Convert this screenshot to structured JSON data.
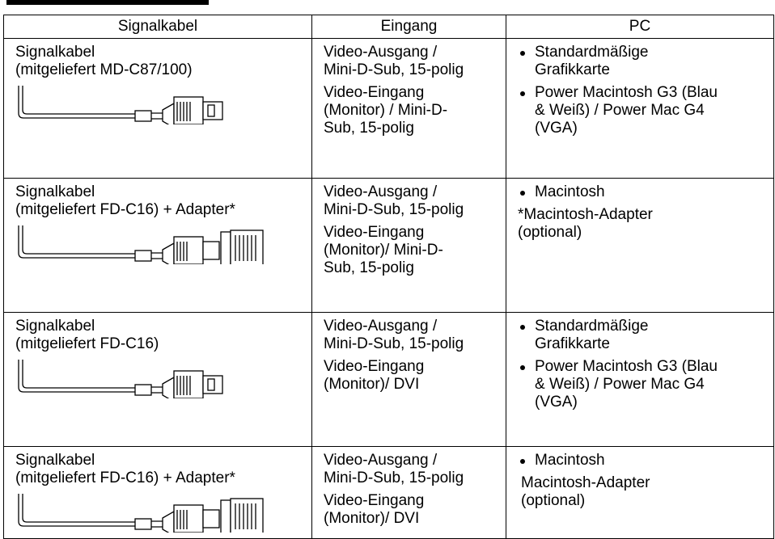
{
  "table": {
    "header": [
      "Signalkabel",
      "Eingang",
      "PC"
    ],
    "rows": [
      {
        "cable": [
          "Signalkabel",
          "(mitgeliefert MD-C87/100)"
        ],
        "input": [
          [
            "Video-Ausgang /",
            "Mini-D-Sub, 15-polig"
          ],
          [
            "Video-Eingang",
            "(Monitor) /  Mini-D-",
            "Sub, 15-polig"
          ]
        ],
        "pc": {
          "items": [
            [
              "Standardmäßige",
              "Grafikkarte"
            ],
            [
              "Power Macintosh G3 (Blau",
              "& Weiß) / Power Mac G4",
              "(VGA)"
            ]
          ],
          "note": []
        }
      },
      {
        "cable": [
          "Signalkabel",
          "(mitgeliefert FD-C16) + Adapter*"
        ],
        "input": [
          [
            "Video-Ausgang /",
            "Mini-D-Sub, 15-polig"
          ],
          [
            "Video-Eingang",
            "(Monitor)/  Mini-D-",
            "Sub, 15-polig"
          ]
        ],
        "pc": {
          "items": [
            [
              "Macintosh"
            ]
          ],
          "note": [
            "*Macintosh-Adapter",
            "(optional)"
          ]
        }
      },
      {
        "cable": [
          "Signalkabel",
          "(mitgeliefert FD-C16)"
        ],
        "input": [
          [
            "Video-Ausgang /",
            "Mini-D-Sub, 15-polig"
          ],
          [
            "Video-Eingang",
            "(Monitor)/  DVI"
          ]
        ],
        "pc": {
          "items": [
            [
              "Standardmäßige",
              "Grafikkarte"
            ],
            [
              "Power Macintosh G3 (Blau",
              "& Weiß) / Power Mac G4",
              "(VGA)"
            ]
          ],
          "note": []
        }
      },
      {
        "cable": [
          "Signalkabel",
          "(mitgeliefert FD-C16) + Adapter*"
        ],
        "input": [
          [
            "Video-Ausgang /",
            "Mini-D-Sub, 15-polig"
          ],
          [
            "Video-Eingang",
            "(Monitor)/  DVI"
          ]
        ],
        "pc": {
          "items": [
            [
              "Macintosh"
            ]
          ],
          "note": [
            "Macintosh-Adapter",
            "(optional)"
          ]
        }
      }
    ]
  }
}
